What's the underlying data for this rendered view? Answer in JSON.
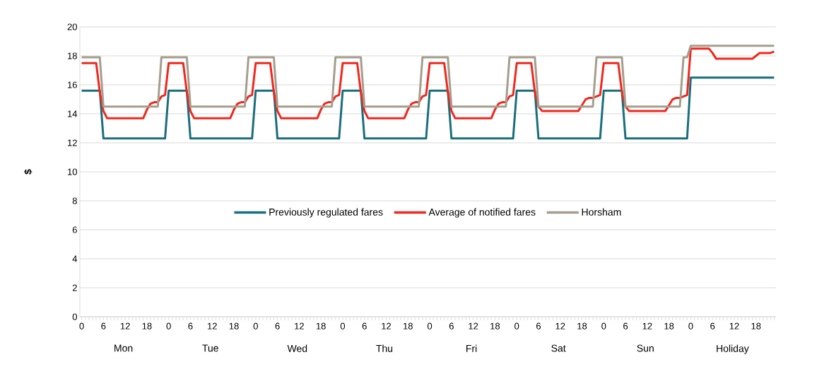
{
  "chart_data": {
    "type": "line",
    "ylabel": "$",
    "categories": [
      "0",
      null,
      null,
      null,
      null,
      null,
      "6",
      null,
      null,
      null,
      null,
      null,
      "12",
      null,
      null,
      null,
      null,
      null,
      "18",
      null,
      null,
      null,
      null,
      null,
      "0",
      null,
      null,
      null,
      null,
      null,
      "6",
      null,
      null,
      null,
      null,
      null,
      "12",
      null,
      null,
      null,
      null,
      null,
      "18",
      null,
      null,
      null,
      null,
      null,
      "0",
      null,
      null,
      null,
      null,
      null,
      "6",
      null,
      null,
      null,
      null,
      null,
      "12",
      null,
      null,
      null,
      null,
      null,
      "18",
      null,
      null,
      null,
      null,
      null,
      "0",
      null,
      null,
      null,
      null,
      null,
      "6",
      null,
      null,
      null,
      null,
      null,
      "12",
      null,
      null,
      null,
      null,
      null,
      "18",
      null,
      null,
      null,
      null,
      null,
      "0",
      null,
      null,
      null,
      null,
      null,
      "6",
      null,
      null,
      null,
      null,
      null,
      "12",
      null,
      null,
      null,
      null,
      null,
      "18",
      null,
      null,
      null,
      null,
      null,
      "0",
      null,
      null,
      null,
      null,
      null,
      "6",
      null,
      null,
      null,
      null,
      null,
      "12",
      null,
      null,
      null,
      null,
      null,
      "18",
      null,
      null,
      null,
      null,
      null,
      "0",
      null,
      null,
      null,
      null,
      null,
      "6",
      null,
      null,
      null,
      null,
      null,
      "12",
      null,
      null,
      null,
      null,
      null,
      "18",
      null,
      null,
      null,
      null,
      null,
      "0",
      null,
      null,
      null,
      null,
      null,
      "6",
      null,
      null,
      null,
      null,
      null,
      "12",
      null,
      null,
      null,
      null,
      null,
      "18",
      null,
      null,
      null,
      null,
      null
    ],
    "ylim": [
      0,
      20
    ],
    "yticks": [
      0,
      2,
      4,
      6,
      8,
      10,
      12,
      14,
      16,
      18,
      20
    ],
    "grid": "y",
    "legend": "center",
    "marker": "none",
    "line_style": "solid",
    "annotations": [
      "Mon",
      "Tue",
      "Wed",
      "Thu",
      "Fri",
      "Sat",
      "Sun",
      "Holiday"
    ],
    "series": [
      {
        "name": "Previously regulated fares",
        "color": "#1a6e7e",
        "values": [
          15.6,
          15.6,
          15.6,
          15.6,
          15.6,
          15.6,
          12.3,
          12.3,
          12.3,
          12.3,
          12.3,
          12.3,
          12.3,
          12.3,
          12.3,
          12.3,
          12.3,
          12.3,
          12.3,
          12.3,
          12.3,
          12.3,
          12.3,
          12.3,
          15.6,
          15.6,
          15.6,
          15.6,
          15.6,
          15.6,
          12.3,
          12.3,
          12.3,
          12.3,
          12.3,
          12.3,
          12.3,
          12.3,
          12.3,
          12.3,
          12.3,
          12.3,
          12.3,
          12.3,
          12.3,
          12.3,
          12.3,
          12.3,
          15.6,
          15.6,
          15.6,
          15.6,
          15.6,
          15.6,
          12.3,
          12.3,
          12.3,
          12.3,
          12.3,
          12.3,
          12.3,
          12.3,
          12.3,
          12.3,
          12.3,
          12.3,
          12.3,
          12.3,
          12.3,
          12.3,
          12.3,
          12.3,
          15.6,
          15.6,
          15.6,
          15.6,
          15.6,
          15.6,
          12.3,
          12.3,
          12.3,
          12.3,
          12.3,
          12.3,
          12.3,
          12.3,
          12.3,
          12.3,
          12.3,
          12.3,
          12.3,
          12.3,
          12.3,
          12.3,
          12.3,
          12.3,
          15.6,
          15.6,
          15.6,
          15.6,
          15.6,
          15.6,
          12.3,
          12.3,
          12.3,
          12.3,
          12.3,
          12.3,
          12.3,
          12.3,
          12.3,
          12.3,
          12.3,
          12.3,
          12.3,
          12.3,
          12.3,
          12.3,
          12.3,
          12.3,
          15.6,
          15.6,
          15.6,
          15.6,
          15.6,
          15.6,
          12.3,
          12.3,
          12.3,
          12.3,
          12.3,
          12.3,
          12.3,
          12.3,
          12.3,
          12.3,
          12.3,
          12.3,
          12.3,
          12.3,
          12.3,
          12.3,
          12.3,
          12.3,
          15.6,
          15.6,
          15.6,
          15.6,
          15.6,
          15.6,
          12.3,
          12.3,
          12.3,
          12.3,
          12.3,
          12.3,
          12.3,
          12.3,
          12.3,
          12.3,
          12.3,
          12.3,
          12.3,
          12.3,
          12.3,
          12.3,
          12.3,
          12.3,
          16.5,
          16.5,
          16.5,
          16.5,
          16.5,
          16.5,
          16.5,
          16.5,
          16.5,
          16.5,
          16.5,
          16.5,
          16.5,
          16.5,
          16.5,
          16.5,
          16.5,
          16.5,
          16.5,
          16.5,
          16.5,
          16.5,
          16.5,
          16.5
        ]
      },
      {
        "name": "Average of notified fares",
        "color": "#f0281e",
        "values": [
          17.5,
          17.5,
          17.5,
          17.5,
          17.5,
          15.5,
          14.2,
          13.7,
          13.7,
          13.7,
          13.7,
          13.7,
          13.7,
          13.7,
          13.7,
          13.7,
          13.7,
          13.7,
          14.3,
          14.7,
          14.8,
          14.8,
          15.2,
          15.3,
          17.5,
          17.5,
          17.5,
          17.5,
          17.5,
          15.5,
          14.2,
          13.7,
          13.7,
          13.7,
          13.7,
          13.7,
          13.7,
          13.7,
          13.7,
          13.7,
          13.7,
          13.7,
          14.3,
          14.7,
          14.8,
          14.8,
          15.2,
          15.3,
          17.5,
          17.5,
          17.5,
          17.5,
          17.5,
          15.5,
          14.2,
          13.7,
          13.7,
          13.7,
          13.7,
          13.7,
          13.7,
          13.7,
          13.7,
          13.7,
          13.7,
          13.7,
          14.3,
          14.7,
          14.8,
          14.8,
          15.2,
          15.3,
          17.5,
          17.5,
          17.5,
          17.5,
          17.5,
          15.5,
          14.2,
          13.7,
          13.7,
          13.7,
          13.7,
          13.7,
          13.7,
          13.7,
          13.7,
          13.7,
          13.7,
          13.7,
          14.3,
          14.7,
          14.8,
          14.8,
          15.2,
          15.3,
          17.5,
          17.5,
          17.5,
          17.5,
          17.5,
          15.5,
          14.2,
          13.7,
          13.7,
          13.7,
          13.7,
          13.7,
          13.7,
          13.7,
          13.7,
          13.7,
          13.7,
          13.7,
          14.3,
          14.7,
          14.8,
          14.8,
          15.2,
          15.3,
          17.5,
          17.5,
          17.5,
          17.5,
          17.5,
          15.5,
          14.5,
          14.2,
          14.2,
          14.2,
          14.2,
          14.2,
          14.2,
          14.2,
          14.2,
          14.2,
          14.2,
          14.2,
          14.6,
          15.0,
          15.1,
          15.1,
          15.2,
          15.3,
          17.5,
          17.5,
          17.5,
          17.5,
          17.5,
          15.5,
          14.5,
          14.2,
          14.2,
          14.2,
          14.2,
          14.2,
          14.2,
          14.2,
          14.2,
          14.2,
          14.2,
          14.2,
          14.6,
          15.0,
          15.1,
          15.1,
          15.2,
          15.3,
          18.5,
          18.5,
          18.5,
          18.5,
          18.5,
          18.5,
          18.2,
          17.8,
          17.8,
          17.8,
          17.8,
          17.8,
          17.8,
          17.8,
          17.8,
          17.8,
          17.8,
          17.8,
          18.0,
          18.2,
          18.2,
          18.2,
          18.2,
          18.3
        ]
      },
      {
        "name": "Horsham",
        "color": "#a59e8e",
        "values": [
          17.9,
          17.9,
          17.9,
          17.9,
          17.9,
          17.9,
          14.5,
          14.5,
          14.5,
          14.5,
          14.5,
          14.5,
          14.5,
          14.5,
          14.5,
          14.5,
          14.5,
          14.5,
          14.5,
          14.5,
          14.5,
          14.5,
          17.9,
          17.9,
          17.9,
          17.9,
          17.9,
          17.9,
          17.9,
          17.9,
          14.5,
          14.5,
          14.5,
          14.5,
          14.5,
          14.5,
          14.5,
          14.5,
          14.5,
          14.5,
          14.5,
          14.5,
          14.5,
          14.5,
          14.5,
          14.5,
          17.9,
          17.9,
          17.9,
          17.9,
          17.9,
          17.9,
          17.9,
          17.9,
          14.5,
          14.5,
          14.5,
          14.5,
          14.5,
          14.5,
          14.5,
          14.5,
          14.5,
          14.5,
          14.5,
          14.5,
          14.5,
          14.5,
          14.5,
          14.5,
          17.9,
          17.9,
          17.9,
          17.9,
          17.9,
          17.9,
          17.9,
          17.9,
          14.5,
          14.5,
          14.5,
          14.5,
          14.5,
          14.5,
          14.5,
          14.5,
          14.5,
          14.5,
          14.5,
          14.5,
          14.5,
          14.5,
          14.5,
          14.5,
          17.9,
          17.9,
          17.9,
          17.9,
          17.9,
          17.9,
          17.9,
          17.9,
          14.5,
          14.5,
          14.5,
          14.5,
          14.5,
          14.5,
          14.5,
          14.5,
          14.5,
          14.5,
          14.5,
          14.5,
          14.5,
          14.5,
          14.5,
          14.5,
          17.9,
          17.9,
          17.9,
          17.9,
          17.9,
          17.9,
          17.9,
          17.9,
          14.5,
          14.5,
          14.5,
          14.5,
          14.5,
          14.5,
          14.5,
          14.5,
          14.5,
          14.5,
          14.5,
          14.5,
          14.5,
          14.5,
          14.5,
          14.5,
          17.9,
          17.9,
          17.9,
          17.9,
          17.9,
          17.9,
          17.9,
          17.9,
          14.5,
          14.5,
          14.5,
          14.5,
          14.5,
          14.5,
          14.5,
          14.5,
          14.5,
          14.5,
          14.5,
          14.5,
          14.5,
          14.5,
          14.5,
          14.5,
          17.9,
          17.9,
          18.7,
          18.7,
          18.7,
          18.7,
          18.7,
          18.7,
          18.7,
          18.7,
          18.7,
          18.7,
          18.7,
          18.7,
          18.7,
          18.7,
          18.7,
          18.7,
          18.7,
          18.7,
          18.7,
          18.7,
          18.7,
          18.7,
          18.7,
          18.7
        ]
      }
    ]
  }
}
